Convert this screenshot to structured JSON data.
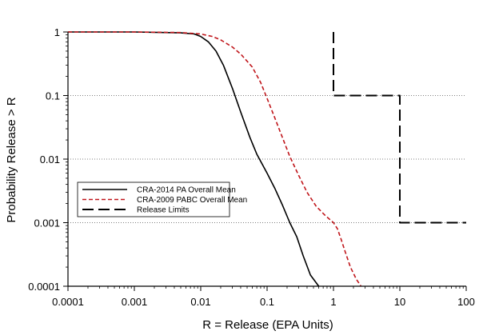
{
  "chart_data": {
    "type": "line",
    "title": "",
    "xlabel": "R = Release (EPA Units)",
    "ylabel": "Probability Release > R",
    "x_scale": "log",
    "y_scale": "log",
    "xlim": [
      0.0001,
      100
    ],
    "ylim": [
      0.0001,
      1
    ],
    "x_ticks": [
      0.0001,
      0.001,
      0.01,
      0.1,
      1,
      10,
      100
    ],
    "x_tick_labels": [
      "0.0001",
      "0.001",
      "0.01",
      "0.1",
      "1",
      "10",
      "100"
    ],
    "y_ticks": [
      0.0001,
      0.001,
      0.01,
      0.1,
      1
    ],
    "y_tick_labels": [
      "0.0001",
      "0.001",
      "0.01",
      "0.1",
      "1"
    ],
    "gridlines": "horizontal dotted at 0.001, 0.01, 0.1",
    "legend_position": "middle-left",
    "series": [
      {
        "name": "CRA-2014 PA Overall Mean",
        "color": "#000000",
        "dash": "solid",
        "x": [
          0.0001,
          0.001,
          0.005,
          0.008,
          0.01,
          0.013,
          0.017,
          0.022,
          0.03,
          0.04,
          0.055,
          0.07,
          0.1,
          0.13,
          0.17,
          0.22,
          0.28,
          0.35,
          0.45,
          0.6
        ],
        "y": [
          1,
          1,
          0.97,
          0.93,
          0.85,
          0.7,
          0.5,
          0.3,
          0.13,
          0.055,
          0.022,
          0.012,
          0.006,
          0.0035,
          0.0019,
          0.001,
          0.0006,
          0.0003,
          0.00015,
          0.0001
        ]
      },
      {
        "name": "CRA-2009 PABC Overall Mean",
        "color": "#c0161b",
        "dash": "dashed",
        "x": [
          0.0001,
          0.001,
          0.005,
          0.01,
          0.015,
          0.02,
          0.03,
          0.04,
          0.06,
          0.08,
          0.1,
          0.13,
          0.17,
          0.22,
          0.3,
          0.4,
          0.55,
          0.75,
          1.0,
          1.15,
          1.3,
          1.5,
          1.8,
          2.2,
          2.6
        ],
        "y": [
          1,
          1,
          0.98,
          0.93,
          0.85,
          0.75,
          0.58,
          0.45,
          0.28,
          0.16,
          0.09,
          0.045,
          0.022,
          0.011,
          0.0055,
          0.003,
          0.0018,
          0.0013,
          0.001,
          0.0008,
          0.00055,
          0.00035,
          0.0002,
          0.00013,
          0.0001
        ]
      },
      {
        "name": "Release Limits",
        "color": "#000000",
        "dash": "longdash",
        "x": [
          1,
          1,
          10,
          10,
          100
        ],
        "y": [
          1,
          0.1,
          0.1,
          0.001,
          0.001
        ]
      }
    ]
  }
}
